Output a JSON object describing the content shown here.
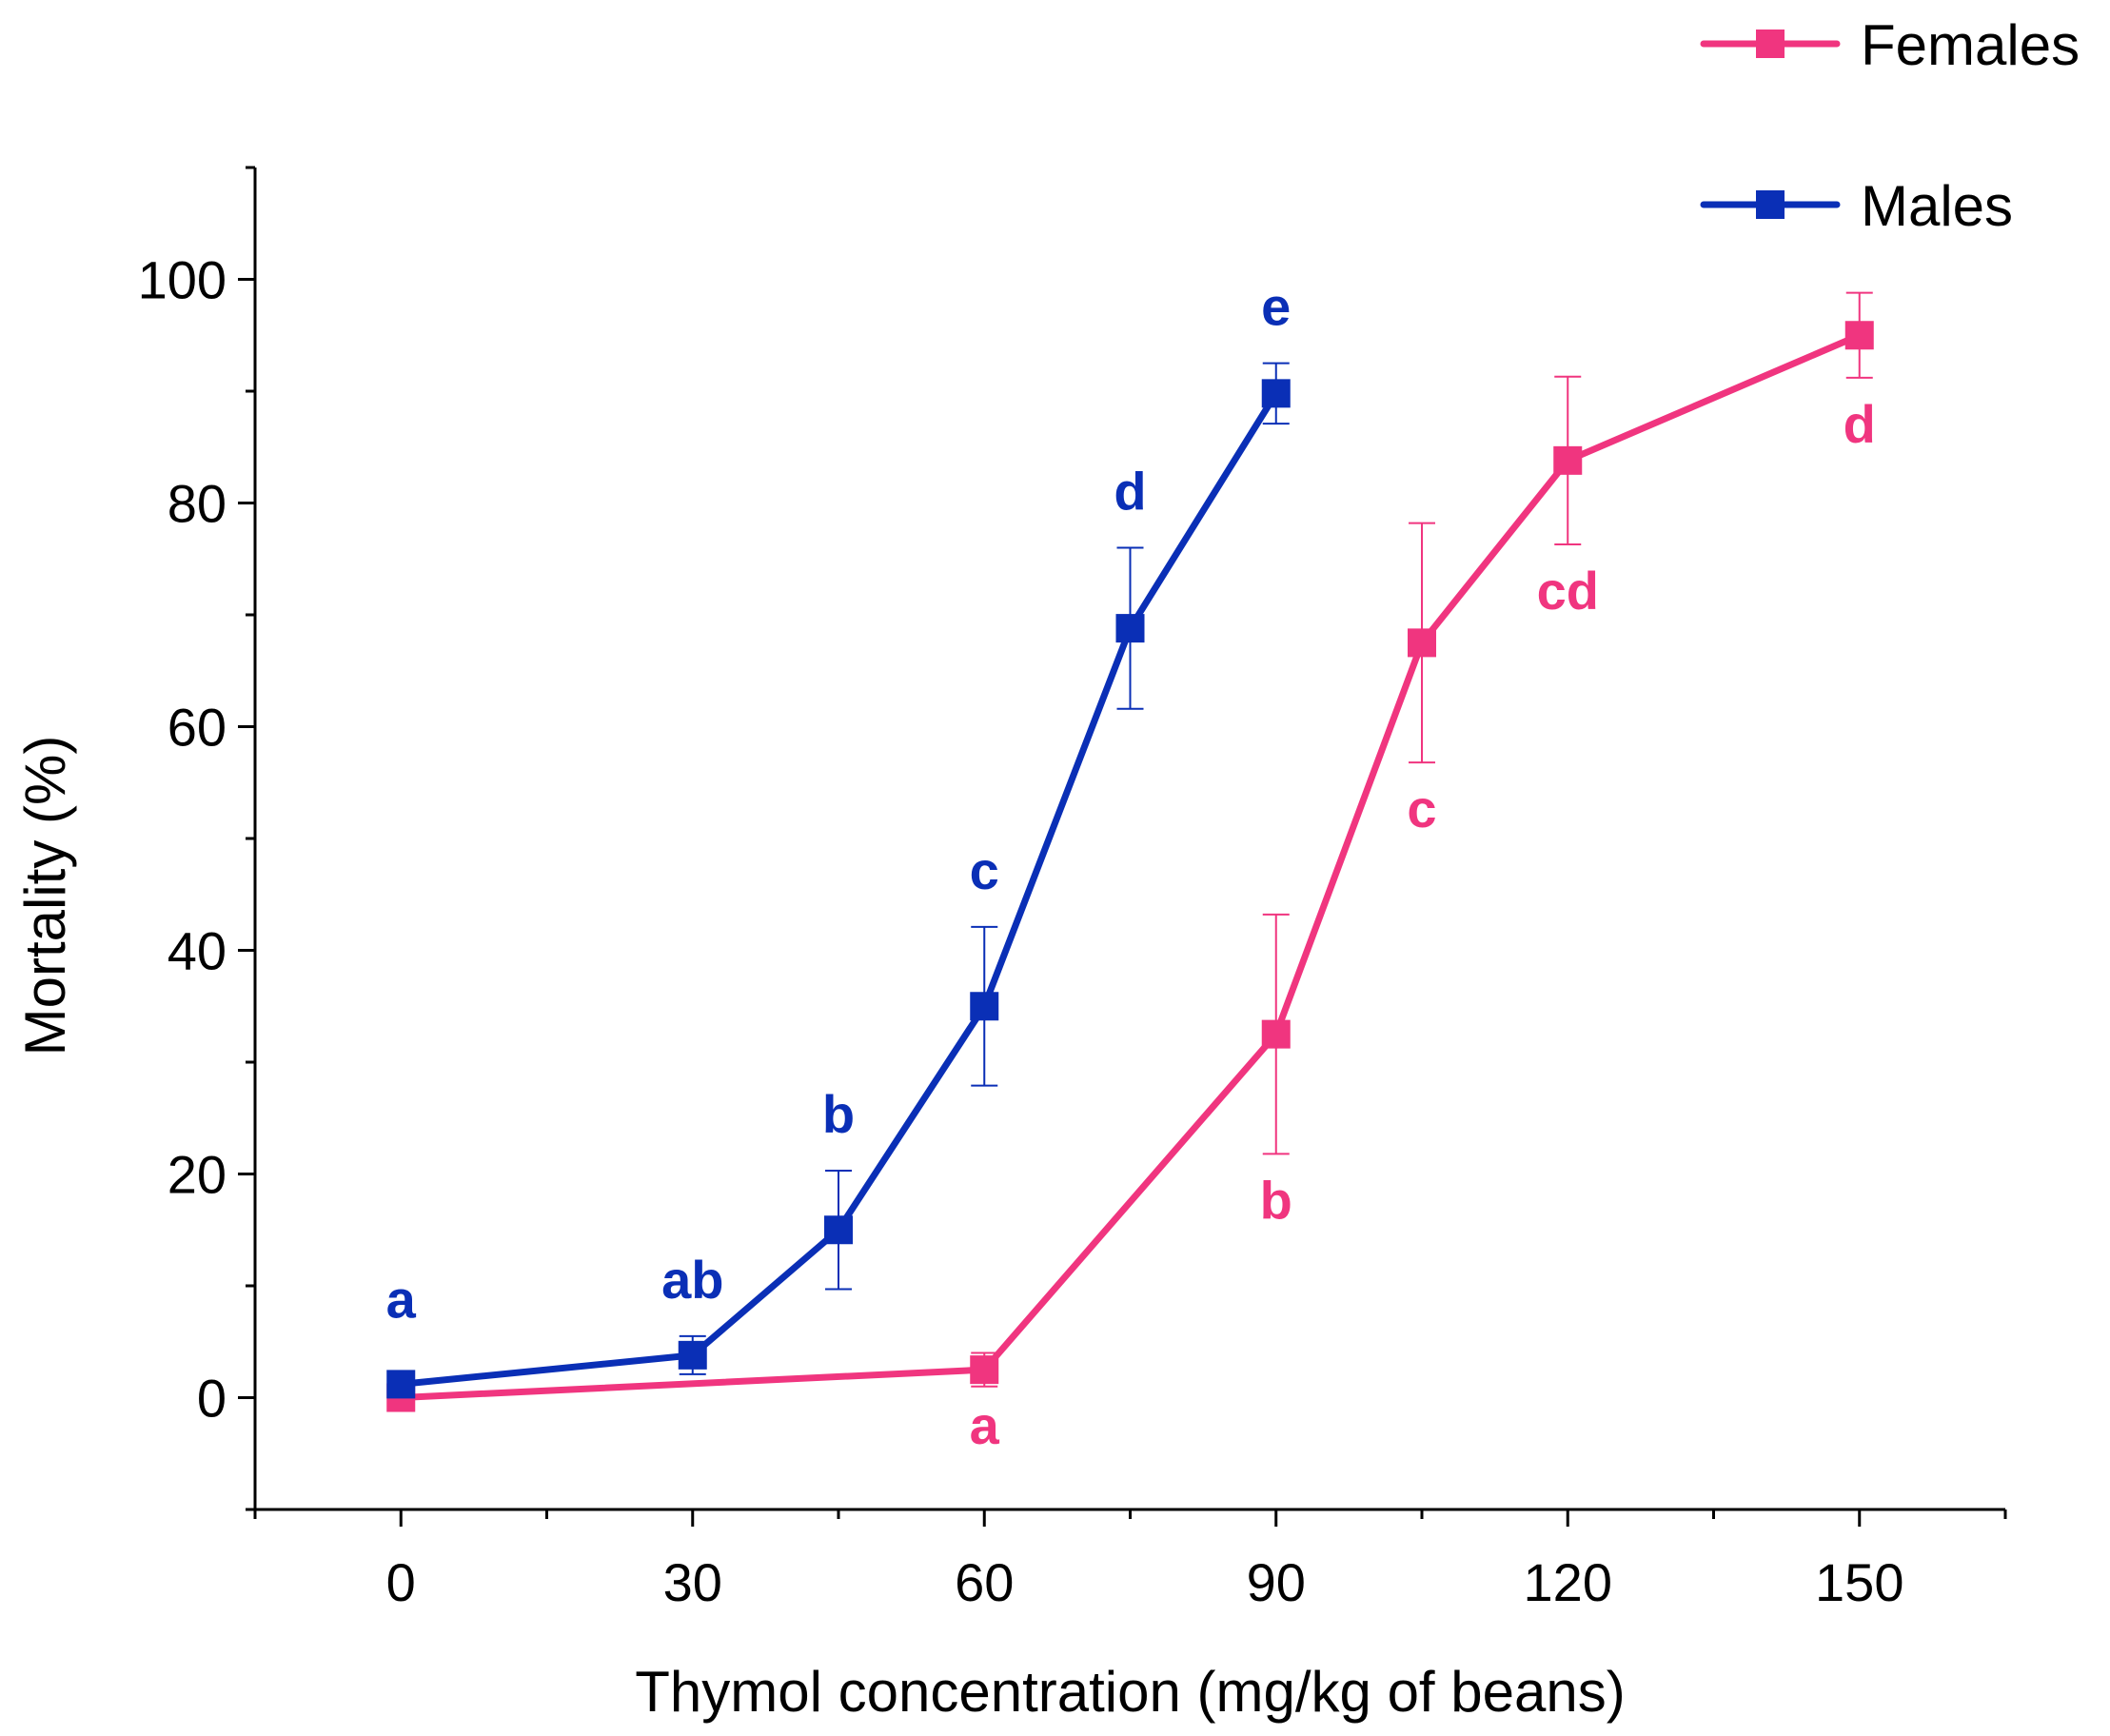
{
  "chart_data": {
    "type": "line",
    "title": "",
    "xlabel": "Thymol concentration (mg/kg of beans)",
    "ylabel": "Mortality (%)",
    "xlim": [
      -15,
      165
    ],
    "ylim": [
      -10,
      110
    ],
    "x_ticks": [
      0,
      30,
      60,
      90,
      120,
      150
    ],
    "x_tick_labels": [
      "0",
      "30",
      "60",
      "90",
      "120",
      "150"
    ],
    "y_ticks": [
      0,
      20,
      40,
      60,
      80,
      100
    ],
    "y_tick_labels": [
      "0",
      "20",
      "40",
      "60",
      "80",
      "100"
    ],
    "grid": false,
    "legend_position": "top-right",
    "series": [
      {
        "name": "Females",
        "color": "#f0357f",
        "points": [
          {
            "x": 0,
            "y": 0,
            "err": 0,
            "label": ""
          },
          {
            "x": 60,
            "y": 2.5,
            "err": 1.5,
            "label": "a"
          },
          {
            "x": 90,
            "y": 32.5,
            "err": 10.7,
            "label": "b"
          },
          {
            "x": 105,
            "y": 67.5,
            "err": 10.7,
            "label": "c"
          },
          {
            "x": 120,
            "y": 83.8,
            "err": 7.5,
            "label": "cd"
          },
          {
            "x": 150,
            "y": 95,
            "err": 3.8,
            "label": "d"
          }
        ]
      },
      {
        "name": "Males",
        "color": "#0a2fb6",
        "points": [
          {
            "x": 0,
            "y": 1.2,
            "err": 0,
            "label": "a"
          },
          {
            "x": 30,
            "y": 3.8,
            "err": 1.7,
            "label": "ab"
          },
          {
            "x": 45,
            "y": 15,
            "err": 5.3,
            "label": "b"
          },
          {
            "x": 60,
            "y": 35,
            "err": 7.1,
            "label": "c"
          },
          {
            "x": 75,
            "y": 68.8,
            "err": 7.2,
            "label": "d"
          },
          {
            "x": 90,
            "y": 89.8,
            "err": 2.7,
            "label": "e"
          }
        ]
      }
    ]
  }
}
